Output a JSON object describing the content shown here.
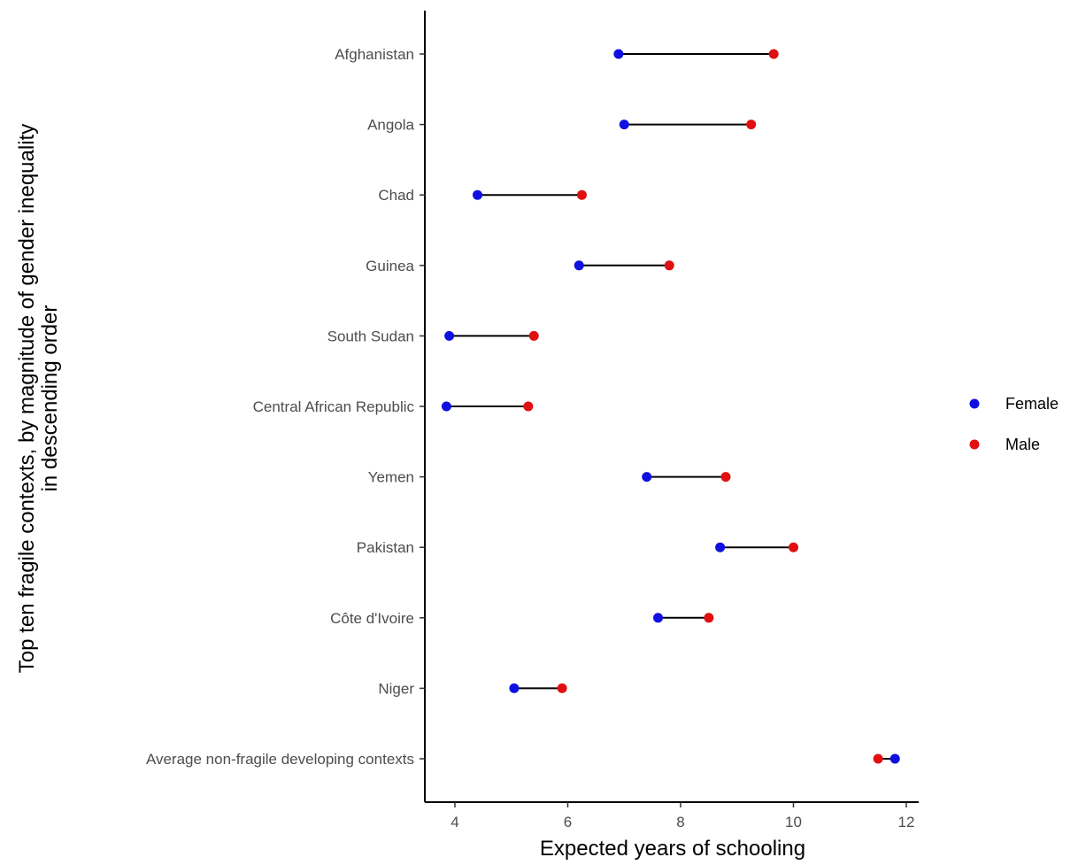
{
  "chart_data": {
    "type": "dumbbell",
    "xlabel": "Expected years of schooling",
    "ylabel_lines": [
      "Top ten fragile contexts, by magnitude of gender inequality",
      "in descending order"
    ],
    "xlim": [
      3.5,
      12.2
    ],
    "xticks": [
      4,
      6,
      8,
      10,
      12
    ],
    "categories": [
      "Afghanistan",
      "Angola",
      "Chad",
      "Guinea",
      "South Sudan",
      "Central African Republic",
      "Yemen",
      "Pakistan",
      "Côte d'Ivoire",
      "Niger",
      "Average non-fragile developing contexts"
    ],
    "series": [
      {
        "name": "Female",
        "color": "#1010e0",
        "values": [
          6.9,
          7.0,
          4.4,
          6.2,
          3.9,
          3.85,
          7.4,
          8.7,
          7.6,
          5.05,
          11.8
        ]
      },
      {
        "name": "Male",
        "color": "#e01010",
        "values": [
          9.65,
          9.25,
          6.25,
          7.8,
          5.4,
          5.3,
          8.8,
          10.0,
          8.5,
          5.9,
          11.5
        ]
      }
    ],
    "legend_position": "right",
    "grid": false
  }
}
